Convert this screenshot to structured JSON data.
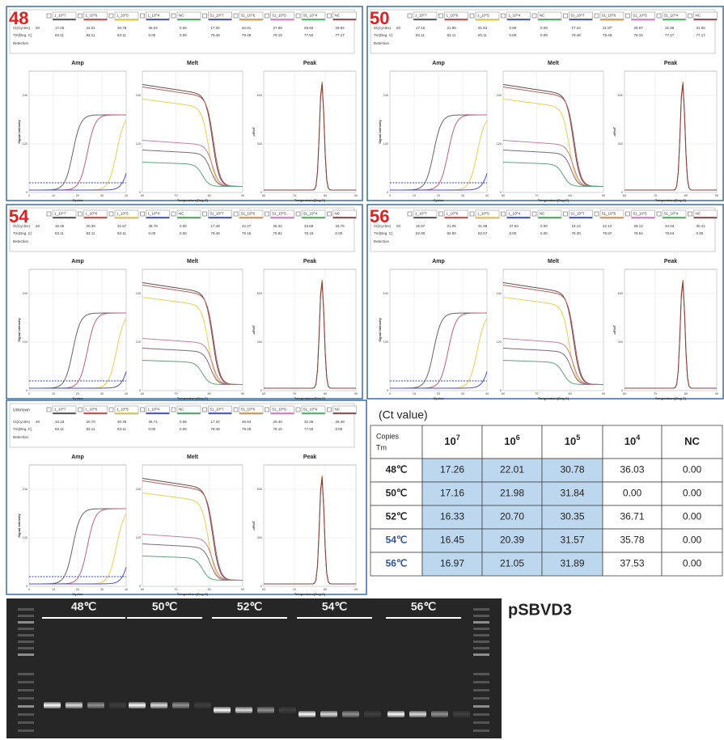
{
  "software": {
    "channels": [
      {
        "name": "1_10^7",
        "color": "#333333"
      },
      {
        "name": "1_10^6",
        "color": "#d02020"
      },
      {
        "name": "1_10^5",
        "color": "#e8c020"
      },
      {
        "name": "1_10^4",
        "color": "#2030c0"
      },
      {
        "name": "NC",
        "color": "#20a040"
      },
      {
        "name": "51_10^7",
        "color": "#2030c0"
      },
      {
        "name": "51_10^6",
        "color": "#e08020"
      },
      {
        "name": "51_10^5",
        "color": "#e060c0"
      },
      {
        "name": "51_10^4",
        "color": "#20b040"
      },
      {
        "name": "NC",
        "color": "#802020"
      }
    ],
    "ct_label": "Ct(Cycles)",
    "threshold": "20",
    "tm_label": "Tm(Deg. C)",
    "detection_label": "Detection",
    "plots": [
      {
        "title": "Amp",
        "x_label": "Cycles",
        "y_label": "Signal Intensity",
        "x_ticks": [
          "0",
          "10",
          "20",
          "30",
          "40"
        ],
        "y_ticks": [
          "0",
          "120",
          "240"
        ]
      },
      {
        "title": "Melt",
        "x_label": "Temperature(Deg.C)",
        "x_ticks": [
          "60",
          "70",
          "80",
          "90"
        ],
        "y_ticks": [
          "0",
          "120",
          "240"
        ]
      },
      {
        "title": "Peak",
        "x_label": "Temperature(Deg.C)",
        "y_label": "-dF/dT",
        "x_ticks": [
          "60",
          "70",
          "80",
          "90"
        ],
        "y_ticks": [
          "0",
          "300",
          "600"
        ]
      }
    ]
  },
  "panels": [
    {
      "label": "48",
      "ct": [
        "17.26",
        "22.01",
        "30.78",
        "36.03",
        "0.00",
        "17.34",
        "22.01",
        "27.88",
        "29.92",
        "29.94"
      ],
      "tm": [
        "83.11",
        "83.11",
        "83.11",
        "0.00",
        "0.00",
        "79.48",
        "79.48",
        "79.15",
        "77.50",
        "77.17"
      ]
    },
    {
      "label": "50",
      "ct": [
        "17.16",
        "21.98",
        "31.84",
        "0.00",
        "0.00",
        "17.24",
        "21.97",
        "28.97",
        "31.86",
        "31.05"
      ],
      "tm": [
        "83.11",
        "83.11",
        "83.11",
        "0.00",
        "0.00",
        "79.48",
        "79.48",
        "79.15",
        "77.17",
        "77.17"
      ]
    },
    {
      "label": "54",
      "ct": [
        "16.45",
        "20.39",
        "31.57",
        "35.78",
        "0.00",
        "17.48",
        "22.27",
        "28.32",
        "33.69",
        "33.75"
      ],
      "tm": [
        "83.11",
        "83.11",
        "83.11",
        "0.00",
        "0.00",
        "79.48",
        "79.15",
        "79.82",
        "78.15",
        "0.00"
      ]
    },
    {
      "label": "56",
      "ct": [
        "16.97",
        "21.05",
        "31.89",
        "37.53",
        "0.00",
        "18.13",
        "22.12",
        "28.13",
        "34.03",
        "30.41"
      ],
      "tm": [
        "82.90",
        "82.90",
        "82.57",
        "0.00",
        "0.00",
        "79.30",
        "78.97",
        "78.64",
        "78.64",
        "0.00"
      ]
    },
    {
      "label": "Unknown",
      "ct": [
        "16.33",
        "20.70",
        "30.35",
        "36.71",
        "0.00",
        "17.37",
        "20.84",
        "29.40",
        "32.36",
        "28.48"
      ],
      "tm": [
        "83.11",
        "83.11",
        "83.11",
        "0.00",
        "0.00",
        "79.48",
        "79.48",
        "79.15",
        "77.50",
        "0.00"
      ]
    }
  ],
  "table": {
    "caption": "(Ct value)",
    "corner": [
      "Copies",
      "Tm"
    ],
    "columns": [
      {
        "base": "10",
        "exp": "7"
      },
      {
        "base": "10",
        "exp": "6"
      },
      {
        "base": "10",
        "exp": "5"
      },
      {
        "base": "10",
        "exp": "4"
      },
      {
        "base": "NC"
      }
    ],
    "rows": [
      [
        "48℃",
        "17.26",
        "22.01",
        "30.78",
        "36.03",
        "0.00"
      ],
      [
        "50℃",
        "17.16",
        "21.98",
        "31.84",
        "0.00",
        "0.00"
      ],
      [
        "52℃",
        "16.33",
        "20.70",
        "30.35",
        "36.71",
        "0.00"
      ],
      [
        "54℃",
        "16.45",
        "20.39",
        "31.57",
        "35.78",
        "0.00"
      ],
      [
        "56℃",
        "16.97",
        "21.05",
        "31.89",
        "37.53",
        "0.00"
      ]
    ]
  },
  "gel": {
    "lanes": [
      "48℃",
      "50℃",
      "52℃",
      "54℃",
      "56℃"
    ],
    "plasmid": "pSBVD3"
  }
}
